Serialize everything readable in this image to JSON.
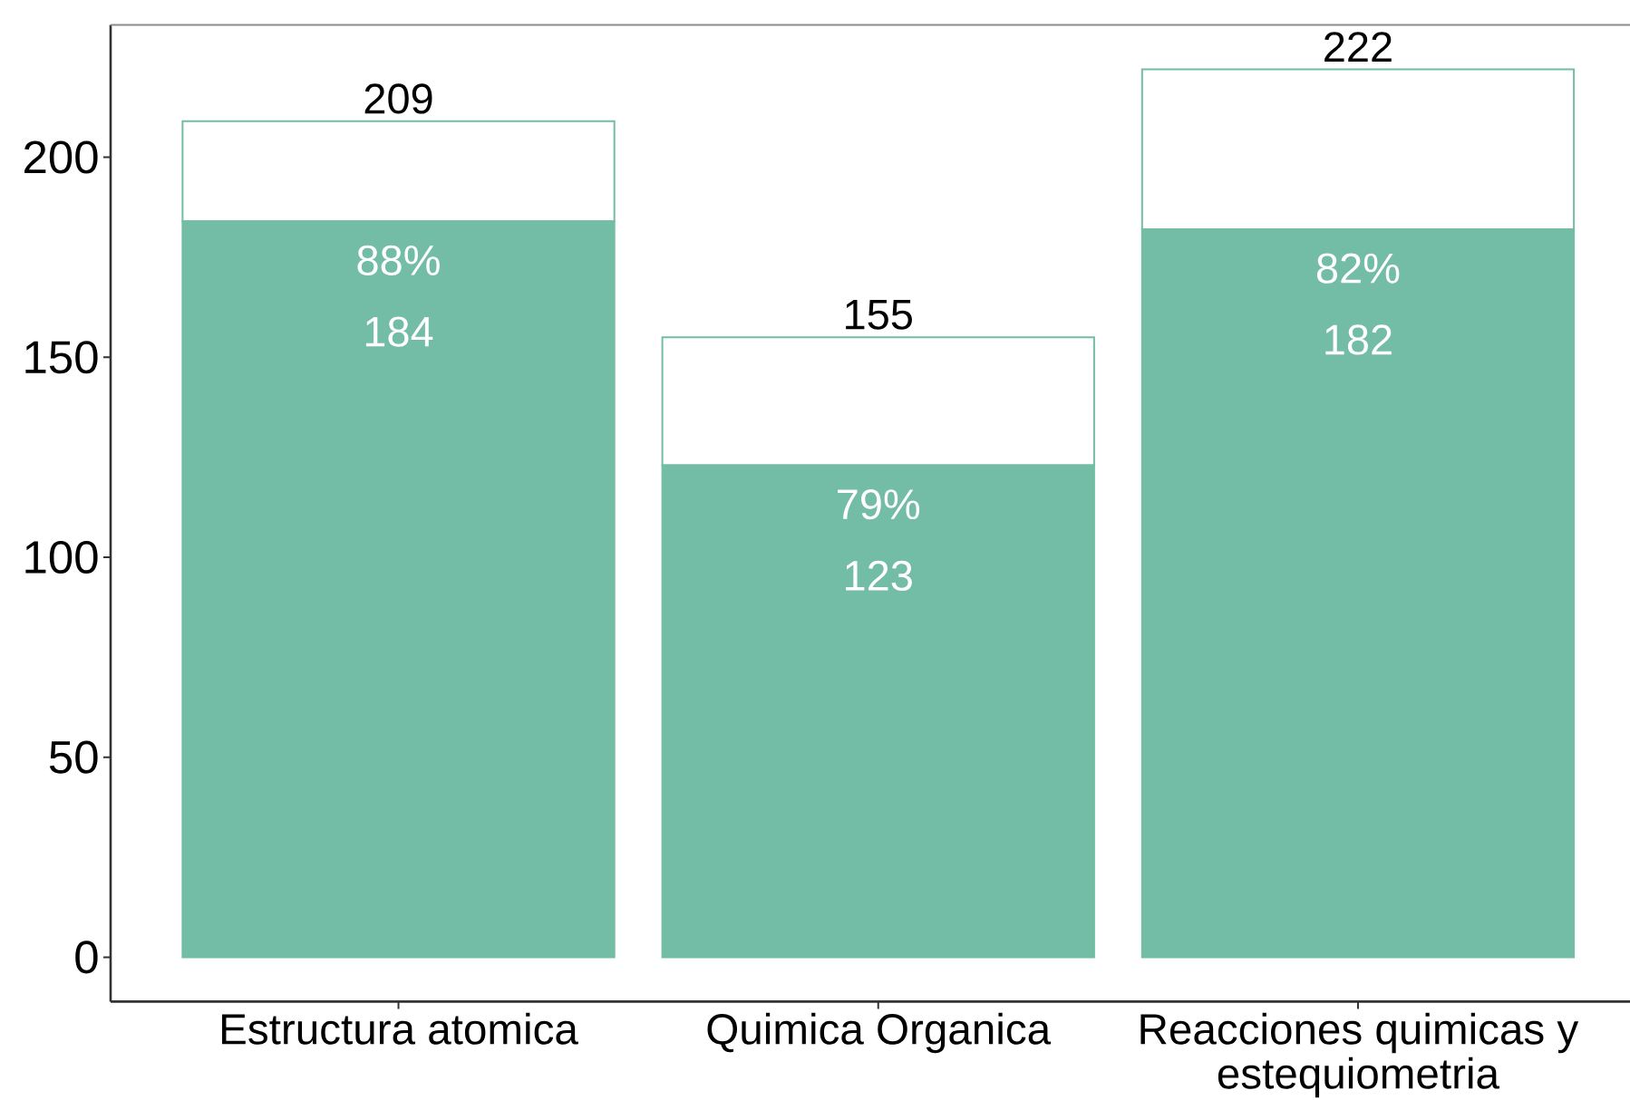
{
  "chart_data": {
    "type": "bar",
    "stacked": true,
    "categories": [
      "Estructura atomica",
      "Quimica Organica",
      "Reacciones quimicas y estequiometria"
    ],
    "series": [
      {
        "color": "#73bca5",
        "values": [
          184,
          123,
          182
        ],
        "value_labels": [
          "184",
          "123",
          "182"
        ]
      },
      {
        "color": "#ffffff",
        "values": [
          25,
          32,
          40
        ]
      }
    ],
    "totals": [
      "209",
      "155",
      "222"
    ],
    "annotations": [
      {
        "text": "88%",
        "x": "Estructura atomica",
        "y": 184
      },
      {
        "text": "79%",
        "x": "Quimica Organica",
        "y": 123
      },
      {
        "text": "82%",
        "x": "Reacciones quimicas y estequiometria",
        "y": 182
      }
    ],
    "ylim": [
      -11.1,
      233.1
    ],
    "yticks": [
      0,
      50,
      100,
      150,
      200
    ]
  }
}
